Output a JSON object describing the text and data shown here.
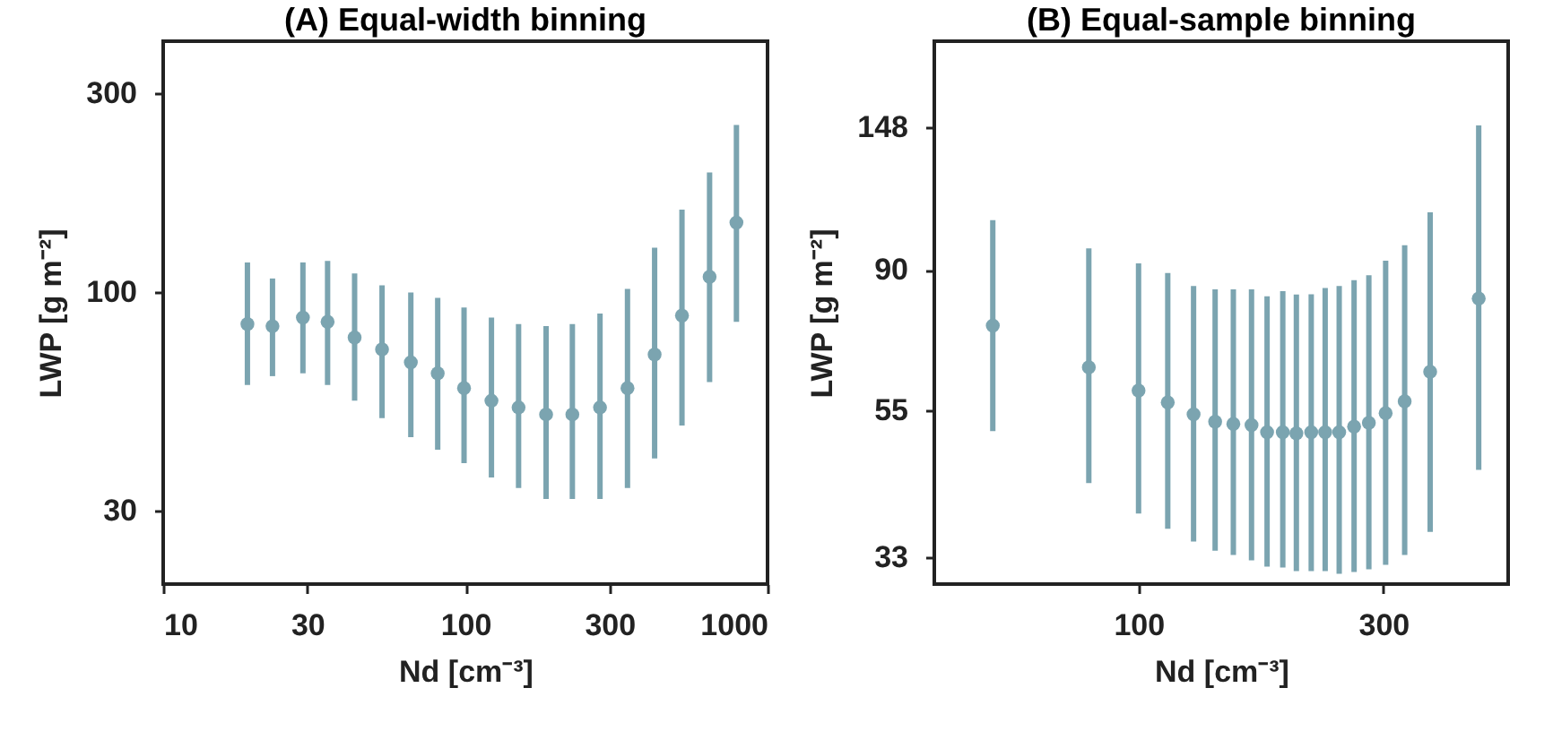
{
  "chart_data": [
    {
      "type": "scatter",
      "title": "(A) Equal-width binning",
      "xlabel": "Nd [cm⁻³]",
      "ylabel": "LWP [g m⁻²]",
      "log": "xy",
      "marker": "circle",
      "grid": false,
      "xlim": [
        10,
        1000
      ],
      "xticks": [
        10,
        30,
        100,
        300,
        1000
      ],
      "ylim": [
        20,
        400
      ],
      "yticks": [
        30,
        100,
        300
      ],
      "x": [
        19,
        23,
        29,
        35,
        43,
        53,
        66,
        81,
        99,
        122,
        150,
        185,
        226,
        279,
        344,
        423,
        521,
        643,
        789
      ],
      "series": [
        {
          "color": "#7ba4b0",
          "values": [
            84,
            83,
            87,
            85,
            78,
            73,
            68,
            64,
            59,
            55,
            53,
            51,
            51,
            53,
            59,
            71,
            88,
            109,
            147
          ],
          "errors": [
            [
              60,
              118
            ],
            [
              63,
              108
            ],
            [
              64,
              118
            ],
            [
              60,
              119
            ],
            [
              55,
              111
            ],
            [
              50,
              104
            ],
            [
              45,
              100
            ],
            [
              42,
              97
            ],
            [
              39,
              92
            ],
            [
              36,
              87
            ],
            [
              34,
              84
            ],
            [
              32,
              83
            ],
            [
              32,
              84
            ],
            [
              32,
              89
            ],
            [
              34,
              102
            ],
            [
              40,
              128
            ],
            [
              48,
              158
            ],
            [
              61,
              194
            ],
            [
              85,
              252
            ]
          ]
        }
      ]
    },
    {
      "type": "scatter",
      "title": "(B) Equal-sample binning",
      "xlabel": "Nd [cm⁻³]",
      "ylabel": "LWP [g m⁻²]",
      "log": "xy",
      "marker": "circle",
      "grid": false,
      "xlim": [
        40,
        525
      ],
      "xticks": [
        100,
        300
      ],
      "ylim": [
        30,
        200
      ],
      "yticks": [
        33,
        55,
        90,
        148
      ],
      "x": [
        52,
        80,
        100,
        114,
        128,
        141,
        153,
        166,
        178,
        191,
        203,
        217,
        231,
        246,
        263,
        281,
        303,
        330,
        370,
        460
      ],
      "series": [
        {
          "color": "#7ba4b0",
          "values": [
            74,
            64,
            59,
            56.6,
            54.3,
            52.9,
            52.5,
            52.3,
            51,
            51,
            50.8,
            51,
            51,
            51,
            52,
            52.7,
            54.5,
            56.8,
            63,
            81.4
          ],
          "errors": [
            [
              51.2,
              107
            ],
            [
              42.7,
              97
            ],
            [
              38.4,
              92
            ],
            [
              36.4,
              89
            ],
            [
              34.8,
              85
            ],
            [
              33.7,
              84
            ],
            [
              33.2,
              84
            ],
            [
              32.6,
              84
            ],
            [
              31.9,
              82
            ],
            [
              31.8,
              83.5
            ],
            [
              31.4,
              82.5
            ],
            [
              31.4,
              82.6
            ],
            [
              31.4,
              84.4
            ],
            [
              31.1,
              85
            ],
            [
              31.3,
              86.8
            ],
            [
              31.6,
              88.3
            ],
            [
              32.1,
              92.9
            ],
            [
              33.2,
              98
            ],
            [
              36,
              110
            ],
            [
              44.7,
              149
            ]
          ]
        }
      ]
    }
  ]
}
